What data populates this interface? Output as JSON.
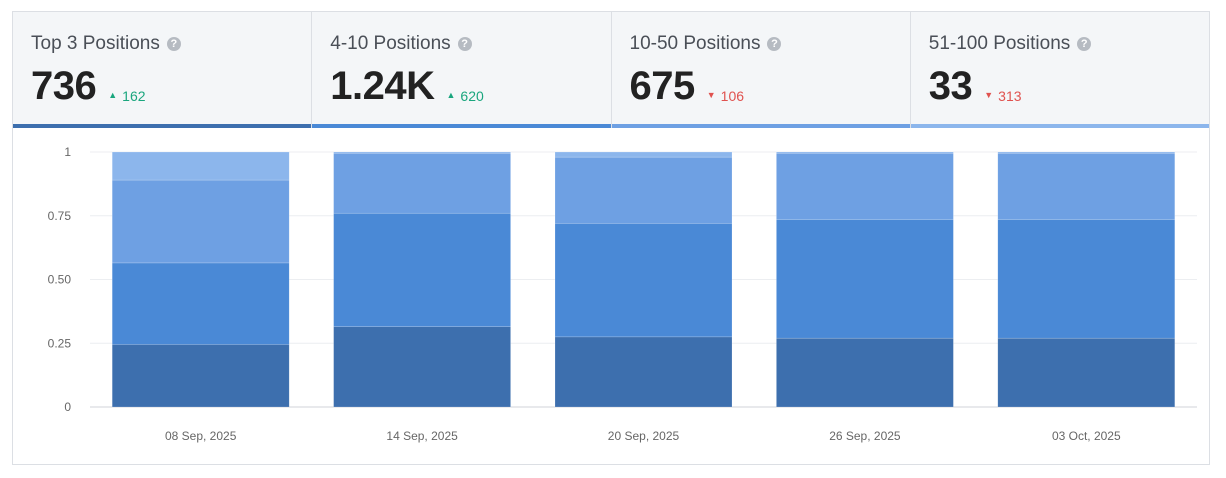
{
  "tabs": [
    {
      "title": "Top 3 Positions",
      "value": "736",
      "delta": "162",
      "direction": "up",
      "bar_color": "#3d6fae"
    },
    {
      "title": "4-10 Positions",
      "value": "1.24K",
      "delta": "620",
      "direction": "up",
      "bar_color": "#4a89d6"
    },
    {
      "title": "10-50 Positions",
      "value": "675",
      "delta": "106",
      "direction": "down",
      "bar_color": "#6ea0e3"
    },
    {
      "title": "51-100 Positions",
      "value": "33",
      "delta": "313",
      "direction": "down",
      "bar_color": "#8cb6ec"
    }
  ],
  "help_icon": "?",
  "chart_data": {
    "type": "bar",
    "stacked": true,
    "normalized": true,
    "categories": [
      "08 Sep, 2025",
      "14 Sep, 2025",
      "20 Sep, 2025",
      "26 Sep, 2025",
      "03 Oct, 2025"
    ],
    "series": [
      {
        "values": [
          0.245,
          0.315,
          0.275,
          0.27,
          0.27
        ],
        "color": "#3d6fae"
      },
      {
        "values": [
          0.32,
          0.445,
          0.445,
          0.465,
          0.465
        ],
        "color": "#4a89d6"
      },
      {
        "values": [
          0.325,
          0.235,
          0.26,
          0.26,
          0.26
        ],
        "color": "#6ea0e3"
      },
      {
        "values": [
          0.11,
          0.005,
          0.02,
          0.005,
          0.005
        ],
        "color": "#8cb6ec"
      }
    ],
    "yticks": [
      "0",
      "0.25",
      "0.50",
      "0.75",
      "1"
    ],
    "ylim": [
      0,
      1
    ],
    "grid": true,
    "legend": "none"
  }
}
